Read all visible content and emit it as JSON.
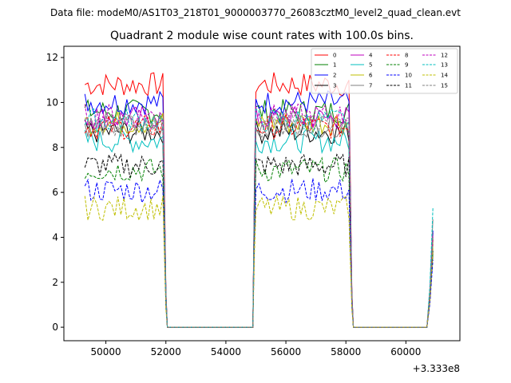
{
  "figure": {
    "suptitle": "Data file: modeM0/AS1T03_218T01_9000003770_26083cztM0_level2_quad_clean.evt"
  },
  "chart_data": {
    "type": "line",
    "title": "Quadrant 2 module wise count rates with 100.0s bins.",
    "xlabel": "",
    "ylabel": "",
    "x_offset_label": "+3.333e8",
    "xlim": [
      48600,
      61800
    ],
    "ylim": [
      -0.6,
      12.5
    ],
    "x_ticks": [
      50000,
      52000,
      54000,
      56000,
      58000,
      60000
    ],
    "x_tick_labels": [
      "50000",
      "52000",
      "54000",
      "56000",
      "58000",
      "60000"
    ],
    "y_ticks": [
      0,
      2,
      4,
      6,
      8,
      10,
      12
    ],
    "y_tick_labels": [
      "0",
      "2",
      "4",
      "6",
      "8",
      "10",
      "12"
    ],
    "grid": false,
    "legend_position": "top-right",
    "segments": [
      {
        "start": 49300,
        "end": 51900,
        "step": 100
      },
      {
        "start": 55000,
        "end": 58100,
        "step": 100
      },
      {
        "start": 60900,
        "end": 60900,
        "step": 100
      }
    ],
    "gaps": [
      {
        "from": 52000,
        "to": 54900
      },
      {
        "from": 58200,
        "to": 60700
      }
    ],
    "series": [
      {
        "name": "0",
        "color": "#ff0000",
        "dash": "solid",
        "level": 10.8,
        "final": 4.2
      },
      {
        "name": "1",
        "color": "#008000",
        "dash": "solid",
        "level": 9.6,
        "final": 3.9
      },
      {
        "name": "2",
        "color": "#0000ff",
        "dash": "solid",
        "level": 10.0,
        "final": 4.3
      },
      {
        "name": "3",
        "color": "#000000",
        "dash": "solid",
        "level": 8.7,
        "final": 3.4
      },
      {
        "name": "4",
        "color": "#bf00bf",
        "dash": "solid",
        "level": 9.3,
        "final": 4.0
      },
      {
        "name": "5",
        "color": "#00bfbf",
        "dash": "solid",
        "level": 8.3,
        "final": 3.7
      },
      {
        "name": "6",
        "color": "#bfbf00",
        "dash": "solid",
        "level": 9.1,
        "final": 3.8
      },
      {
        "name": "7",
        "color": "#808080",
        "dash": "solid",
        "level": 9.0,
        "final": 4.8
      },
      {
        "name": "8",
        "color": "#ff0000",
        "dash": "dashed",
        "level": 8.9,
        "final": 3.9
      },
      {
        "name": "9",
        "color": "#008000",
        "dash": "dashed",
        "level": 7.0,
        "final": 3.3
      },
      {
        "name": "10",
        "color": "#0000ff",
        "dash": "dashed",
        "level": 6.1,
        "final": 3.0
      },
      {
        "name": "11",
        "color": "#000000",
        "dash": "dashed",
        "level": 7.2,
        "final": 3.4
      },
      {
        "name": "12",
        "color": "#bf00bf",
        "dash": "dashed",
        "level": 9.4,
        "final": 4.1
      },
      {
        "name": "13",
        "color": "#00bfbf",
        "dash": "dashed",
        "level": 9.2,
        "final": 5.3
      },
      {
        "name": "14",
        "color": "#bfbf00",
        "dash": "dashed",
        "level": 5.3,
        "final": 3.5
      },
      {
        "name": "15",
        "color": "#808080",
        "dash": "dashed",
        "level": 9.0,
        "final": 4.0
      }
    ]
  }
}
